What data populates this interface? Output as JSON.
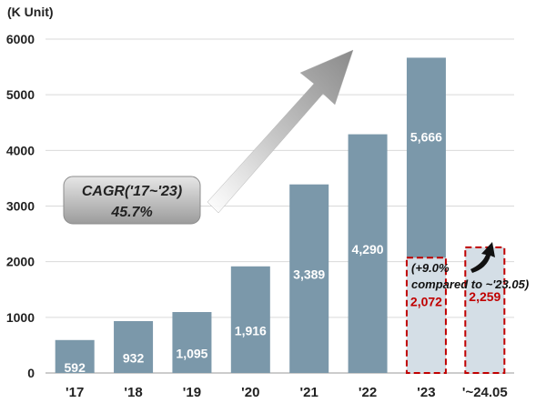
{
  "chart_data": {
    "type": "bar",
    "unit_label": "(K Unit)",
    "categories": [
      "'17",
      "'18",
      "'19",
      "'20",
      "'21",
      "'22",
      "'23",
      "'~24.05"
    ],
    "values": [
      592,
      932,
      1095,
      1916,
      3389,
      4290,
      5666,
      2259
    ],
    "value_labels": [
      "592",
      "932",
      "1,095",
      "1,916",
      "3,389",
      "4,290",
      "5,666",
      "2,259"
    ],
    "partial": {
      "category": "'23",
      "value": 2072,
      "label": "2,072"
    },
    "ylim": [
      0,
      6000
    ],
    "yticks": [
      0,
      1000,
      2000,
      3000,
      4000,
      5000,
      6000
    ],
    "ytick_labels": [
      "0",
      "1000",
      "2000",
      "3000",
      "4000",
      "5000",
      "6000"
    ],
    "grid": true,
    "cagr": {
      "line1": "CAGR('17~'23)",
      "line2": "45.7%"
    },
    "growth_note": {
      "line1": "(+9.0%",
      "line2": "compared to ~'23.05)"
    },
    "colors": {
      "bar": "#7b98aa",
      "partial_fill": "#d4dee6",
      "highlight_border": "#c00000",
      "grid": "#d9d9d9",
      "arrow": "#9a9a9a"
    }
  }
}
